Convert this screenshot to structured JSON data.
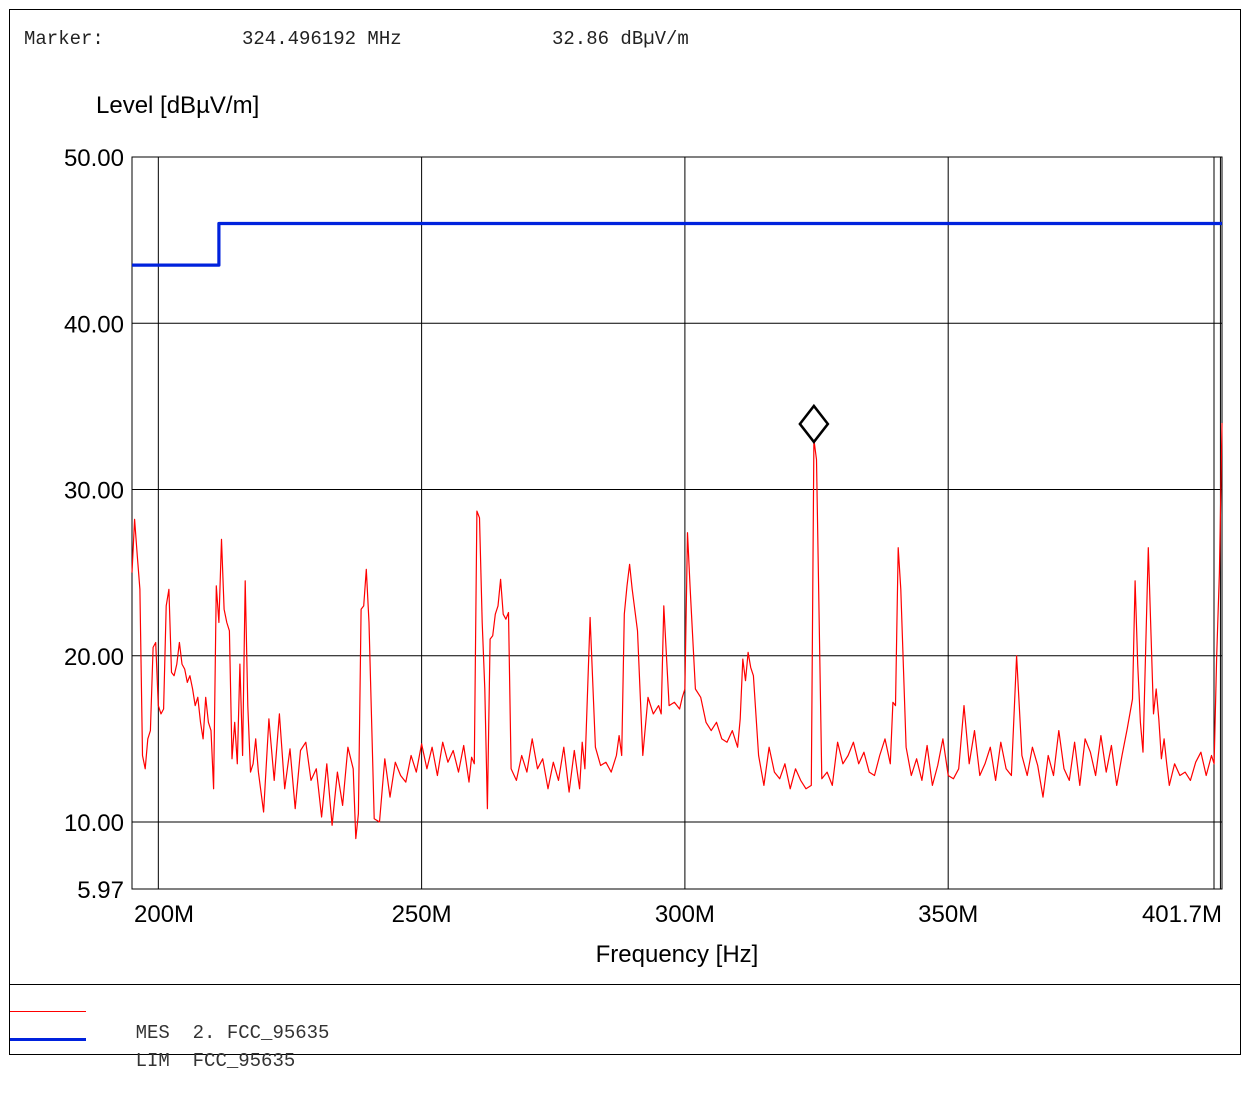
{
  "marker": {
    "label": "Marker:",
    "frequency": "324.496192 MHz",
    "level": "32.86 dBµV/m"
  },
  "legend": [
    {
      "code": "MES",
      "text": "2. FCC_95635",
      "color": "#ff0000"
    },
    {
      "code": "LIM",
      "text": "FCC_95635",
      "color": "#0022dd"
    }
  ],
  "chart_data": {
    "type": "line",
    "ylabel": "Level [dBµV/m]",
    "xlabel": "Frequency [Hz]",
    "xlim": [
      195,
      402
    ],
    "ylim": [
      5.97,
      50
    ],
    "x_ticks": [
      {
        "value": 200,
        "label": "200M"
      },
      {
        "value": 250,
        "label": "250M"
      },
      {
        "value": 300,
        "label": "300M"
      },
      {
        "value": 350,
        "label": "350M"
      },
      {
        "value": 401.7,
        "label": "401.7M"
      }
    ],
    "y_ticks": [
      {
        "value": 5.97,
        "label": "5.97"
      },
      {
        "value": 10,
        "label": "10.00"
      },
      {
        "value": 20,
        "label": "20.00"
      },
      {
        "value": 30,
        "label": "30.00"
      },
      {
        "value": 40,
        "label": "40.00"
      },
      {
        "value": 50,
        "label": "50.00"
      }
    ],
    "grid": true,
    "marker_point": {
      "x": 324.496192,
      "y": 32.86
    },
    "series": [
      {
        "name": "MES",
        "color": "#ff0000",
        "x": [
          195,
          195.5,
          196,
          196.5,
          197,
          197.5,
          198,
          198.5,
          199,
          199.5,
          200,
          200.5,
          201,
          201.5,
          202,
          202.5,
          203,
          203.5,
          204,
          204.5,
          205,
          205.5,
          206,
          206.5,
          207,
          207.5,
          208,
          208.5,
          209,
          209.5,
          210,
          210.5,
          211,
          211.5,
          212,
          212.5,
          213,
          213.5,
          214,
          214.5,
          215,
          215.5,
          216,
          216.5,
          217,
          217.5,
          218,
          218.5,
          219,
          220,
          221,
          222,
          223,
          224,
          225,
          226,
          227,
          228,
          229,
          230,
          231,
          232,
          233,
          234,
          235,
          236,
          237,
          237.5,
          238,
          238.5,
          239,
          239.5,
          240,
          241,
          242,
          243,
          244,
          245,
          246,
          247,
          248,
          249,
          250,
          251,
          252,
          253,
          254,
          255,
          256,
          257,
          258,
          259,
          259.5,
          260,
          260.5,
          261,
          261.5,
          262,
          262.5,
          263,
          263.5,
          264,
          264.5,
          265,
          265.5,
          266,
          266.5,
          267,
          268,
          269,
          270,
          271,
          272,
          273,
          274,
          275,
          276,
          277,
          278,
          279,
          280,
          280.5,
          281,
          282,
          283,
          284,
          285,
          286,
          287,
          287.5,
          288,
          288.5,
          289,
          289.5,
          290,
          291,
          292,
          293,
          294,
          295,
          295.5,
          296,
          297,
          298,
          299,
          299.5,
          300,
          300.5,
          301,
          302,
          303,
          304,
          305,
          306,
          307,
          308,
          309,
          310,
          310.5,
          311,
          311.5,
          312,
          312.5,
          313,
          314,
          315,
          316,
          317,
          318,
          319,
          320,
          321,
          322,
          323,
          324,
          324.5,
          325,
          326,
          327,
          328,
          329,
          330,
          331,
          332,
          333,
          334,
          335,
          336,
          337,
          338,
          339,
          339.5,
          340,
          340.5,
          341,
          342,
          343,
          344,
          345,
          346,
          347,
          348,
          349,
          350,
          351,
          352,
          353,
          354,
          355,
          356,
          357,
          358,
          359,
          360,
          361,
          362,
          363,
          364,
          365,
          366,
          367,
          368,
          369,
          370,
          371,
          372,
          373,
          374,
          375,
          376,
          377,
          378,
          379,
          380,
          381,
          382,
          383,
          384,
          385,
          385.5,
          386,
          386.5,
          387,
          388,
          389,
          389.5,
          390,
          390.5,
          391,
          391.5,
          392,
          393,
          394,
          395,
          396,
          397,
          398,
          399,
          400,
          400.5,
          401,
          401.5,
          402
        ],
        "values": [
          25.0,
          28.2,
          26.0,
          24.0,
          14.0,
          13.2,
          15.0,
          15.5,
          20.5,
          20.8,
          17.0,
          16.5,
          16.8,
          23.0,
          24.0,
          19.0,
          18.8,
          19.5,
          20.8,
          19.5,
          19.2,
          18.4,
          18.8,
          18.0,
          17.0,
          17.5,
          16.0,
          15.0,
          17.5,
          16.0,
          15.5,
          12.0,
          24.2,
          22.0,
          27.0,
          22.8,
          22.0,
          21.5,
          13.8,
          16.0,
          13.5,
          19.5,
          14.0,
          24.5,
          17.0,
          13.0,
          13.5,
          15.0,
          13.0,
          10.6,
          16.2,
          12.5,
          16.5,
          12.0,
          14.4,
          10.8,
          14.3,
          14.8,
          12.5,
          13.2,
          10.3,
          13.5,
          9.8,
          13.0,
          11.0,
          14.5,
          13.2,
          9.0,
          10.5,
          22.8,
          23.0,
          25.2,
          22.0,
          10.2,
          10.0,
          13.8,
          11.5,
          13.6,
          12.8,
          12.4,
          14.0,
          13.0,
          14.7,
          13.2,
          14.5,
          12.8,
          14.8,
          13.6,
          14.3,
          13.0,
          14.6,
          12.4,
          13.9,
          13.5,
          28.7,
          28.3,
          22.0,
          18.0,
          10.8,
          21.0,
          21.2,
          22.5,
          23.0,
          24.6,
          22.5,
          22.2,
          22.6,
          13.2,
          12.5,
          14.0,
          13.0,
          15.0,
          13.2,
          13.8,
          12.0,
          13.6,
          12.5,
          14.5,
          11.8,
          14.3,
          12.0,
          14.8,
          13.2,
          22.3,
          14.5,
          13.4,
          13.6,
          13.0,
          14.0,
          15.2,
          14.0,
          22.5,
          24.2,
          25.5,
          24.0,
          21.5,
          14.0,
          17.5,
          16.5,
          17.0,
          16.5,
          23.0,
          17.0,
          17.2,
          16.8,
          17.5,
          18.0,
          27.4,
          24.0,
          18.0,
          17.5,
          16.0,
          15.5,
          16.0,
          15.0,
          14.8,
          15.5,
          14.5,
          16.2,
          19.8,
          18.5,
          20.2,
          19.3,
          18.8,
          14.0,
          12.2,
          14.5,
          13.0,
          12.6,
          13.5,
          12.0,
          13.2,
          12.5,
          12.0,
          12.2,
          33.0,
          31.8,
          12.6,
          13.0,
          12.2,
          14.8,
          13.5,
          14.0,
          14.8,
          13.5,
          14.2,
          13.0,
          12.8,
          14.0,
          15.0,
          13.5,
          17.2,
          17.0,
          26.5,
          24.0,
          14.5,
          12.8,
          13.8,
          12.5,
          14.6,
          12.2,
          13.4,
          15.0,
          12.8,
          12.6,
          13.2,
          17.0,
          13.5,
          15.5,
          12.8,
          13.5,
          14.5,
          12.5,
          14.8,
          13.2,
          12.8,
          20.0,
          14.0,
          12.8,
          14.5,
          13.4,
          11.5,
          14.0,
          12.8,
          15.5,
          13.2,
          12.5,
          14.8,
          12.2,
          15.0,
          14.2,
          12.8,
          15.2,
          13.0,
          14.6,
          12.2,
          14.0,
          15.6,
          17.4,
          24.5,
          19.5,
          16.0,
          14.2,
          26.5,
          16.5,
          18.0,
          16.2,
          13.8,
          15.0,
          13.5,
          12.2,
          13.5,
          12.8,
          13.0,
          12.5,
          13.6,
          14.2,
          12.8,
          14.0,
          13.5,
          20.0,
          25.0,
          34.0
        ]
      },
      {
        "name": "LIM",
        "color": "#0022dd",
        "x": [
          195,
          211.5,
          211.5,
          402
        ],
        "values": [
          43.5,
          43.5,
          46.0,
          46.0
        ]
      }
    ]
  }
}
